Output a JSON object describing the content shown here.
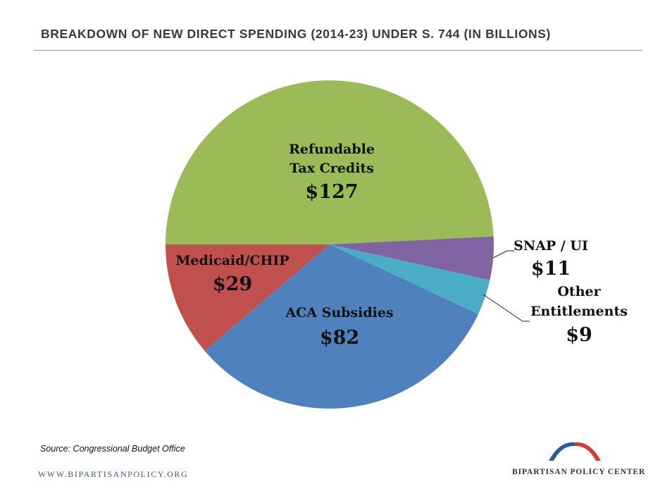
{
  "title": "BREAKDOWN OF NEW DIRECT SPENDING (2014-23) UNDER S. 744 (IN BILLIONS)",
  "source": "Source: Congressional Budget Office",
  "footer": {
    "website": "WWW.BIPARTISANPOLICY.ORG",
    "organization": "BIPARTISAN POLICY CENTER"
  },
  "colors": {
    "refundable": "#9BBB59",
    "snap": "#8064A2",
    "other": "#4BACC6",
    "aca": "#4F81BD",
    "medicaid": "#C0504D",
    "logo_blue": "#2a5a9a",
    "logo_red": "#d43a3a"
  },
  "chart_data": {
    "type": "pie",
    "title": "BREAKDOWN OF NEW DIRECT SPENDING (2014-23) UNDER S. 744 (IN BILLIONS)",
    "slices": [
      {
        "label_lines": [
          "Refundable",
          "Tax Credits"
        ],
        "value_label": "$127",
        "value": 127,
        "color": "#9BBB59"
      },
      {
        "label_lines": [
          "SNAP / UI"
        ],
        "value_label": "$11",
        "value": 11,
        "color": "#8064A2"
      },
      {
        "label_lines": [
          "Other",
          "Entitlements"
        ],
        "value_label": "$9",
        "value": 9,
        "color": "#4BACC6"
      },
      {
        "label_lines": [
          "ACA Subsidies"
        ],
        "value_label": "$82",
        "value": 82,
        "color": "#4F81BD"
      },
      {
        "label_lines": [
          "Medicaid/CHIP"
        ],
        "value_label": "$29",
        "value": 29,
        "color": "#C0504D"
      }
    ]
  }
}
